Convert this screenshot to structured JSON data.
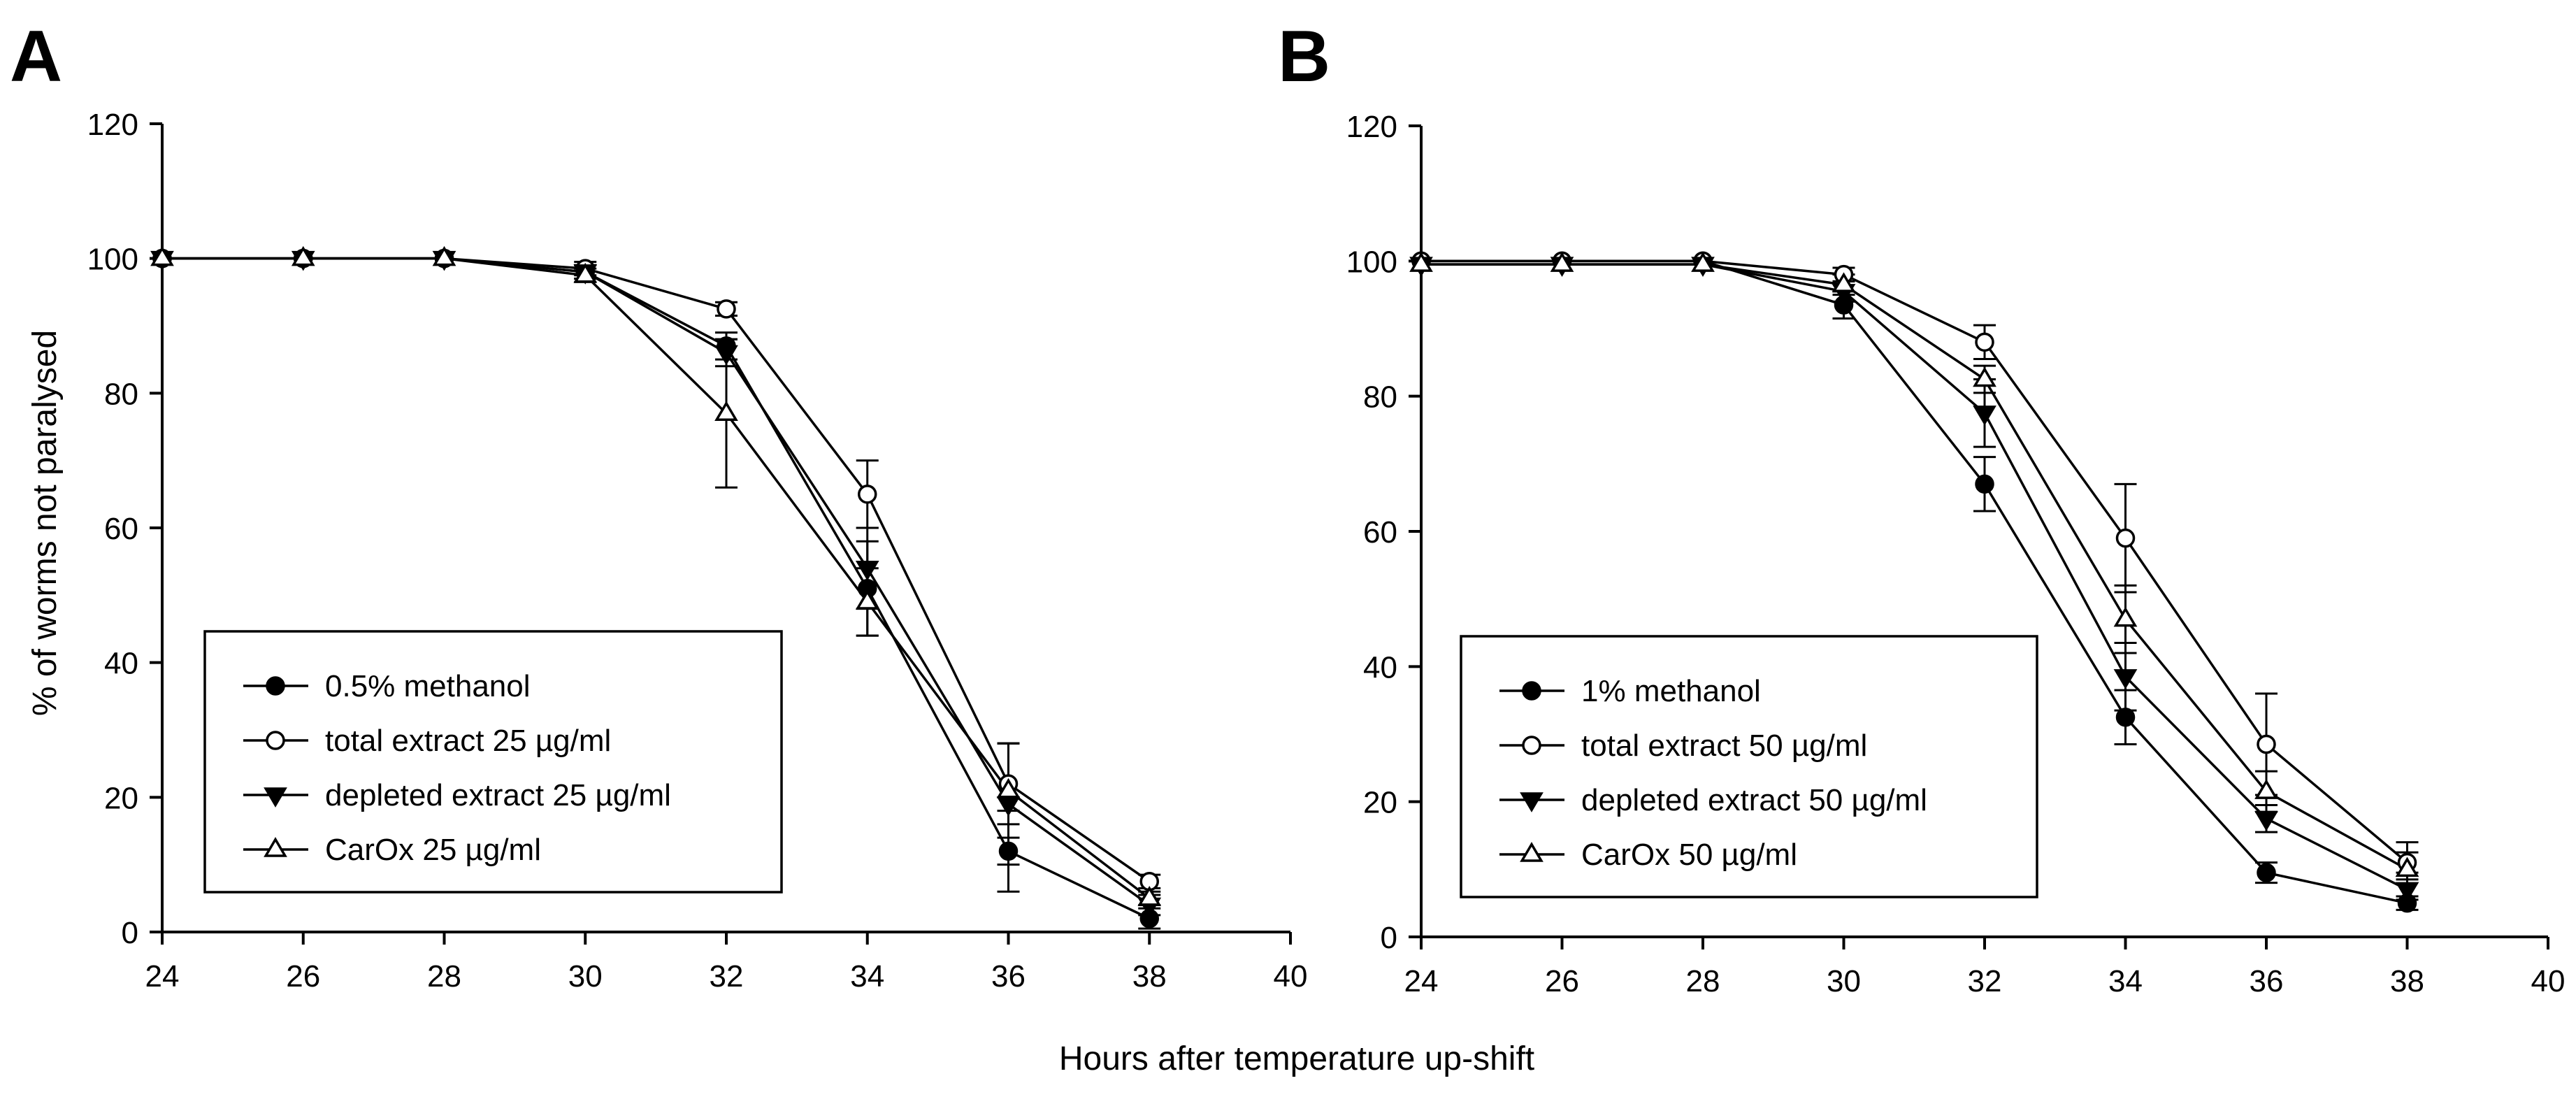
{
  "figure": {
    "xlabel": "Hours after temperature up-shift",
    "ylabel": "% of worms not paralysed"
  },
  "chart_data": [
    {
      "type": "line",
      "panel": "A",
      "xlim": [
        24,
        40
      ],
      "ylim": [
        0,
        120
      ],
      "xticks": [
        "24",
        "26",
        "28",
        "30",
        "32",
        "34",
        "36",
        "38",
        "40"
      ],
      "yticks": [
        "0",
        "20",
        "40",
        "60",
        "80",
        "100",
        "120"
      ],
      "x": [
        24,
        26,
        28,
        30,
        32,
        34,
        36,
        38
      ],
      "legend_position": "lower-left",
      "series": [
        {
          "name": "0.5% methanol",
          "marker": "filled-circle",
          "values": [
            100,
            100,
            100,
            98,
            87,
            51,
            12,
            2
          ],
          "errors": [
            0,
            0,
            0,
            1,
            2,
            7,
            6,
            1.5
          ]
        },
        {
          "name": "total extract 25 µg/ml",
          "marker": "open-circle",
          "values": [
            100,
            100,
            100,
            98.5,
            92.5,
            65,
            22,
            7.5
          ],
          "errors": [
            0,
            0,
            0,
            1,
            1,
            5,
            6,
            1
          ]
        },
        {
          "name": "depleted extract 25 µg/ml",
          "marker": "filled-triangle-down",
          "values": [
            100,
            100,
            100,
            98,
            86,
            54,
            19,
            4
          ],
          "errors": [
            0,
            0,
            0,
            1,
            2,
            6,
            9,
            1.5
          ]
        },
        {
          "name": "CarOx 25 µg/ml",
          "marker": "open-triangle-up",
          "values": [
            100,
            100,
            100,
            97.5,
            77,
            49,
            21,
            5
          ],
          "errors": [
            0,
            0,
            0,
            1,
            11,
            5,
            7,
            1
          ]
        }
      ]
    },
    {
      "type": "line",
      "panel": "B",
      "xlim": [
        24,
        40
      ],
      "ylim": [
        0,
        120
      ],
      "xticks": [
        "24",
        "26",
        "28",
        "30",
        "32",
        "34",
        "36",
        "38",
        "40"
      ],
      "yticks": [
        "0",
        "20",
        "40",
        "60",
        "80",
        "100",
        "120"
      ],
      "x": [
        24,
        26,
        28,
        30,
        32,
        34,
        36,
        38
      ],
      "legend_position": "lower-left",
      "series": [
        {
          "name": "1% methanol",
          "marker": "filled-circle",
          "values": [
            100,
            100,
            100,
            93.5,
            67,
            32.5,
            9.5,
            5
          ],
          "errors": [
            0,
            0,
            0,
            2,
            4,
            4,
            1.5,
            1
          ]
        },
        {
          "name": "total extract 50 µg/ml",
          "marker": "open-circle",
          "values": [
            100,
            100,
            100,
            98,
            88,
            59,
            28.5,
            11
          ],
          "errors": [
            0,
            0,
            0,
            1,
            2.5,
            8,
            7.5,
            1.5
          ]
        },
        {
          "name": "depleted extract 50 µg/ml",
          "marker": "filled-triangle-down",
          "values": [
            99.5,
            99.5,
            99.5,
            95.5,
            77.5,
            38.5,
            17.5,
            7
          ],
          "errors": [
            0,
            0,
            0,
            1.5,
            5,
            5,
            2,
            1.5
          ]
        },
        {
          "name": "CarOx 50 µg/ml",
          "marker": "open-triangle-up",
          "values": [
            99.5,
            99.5,
            99.5,
            96.5,
            82.5,
            47,
            21.5,
            10
          ],
          "errors": [
            0,
            0,
            0,
            1.5,
            2,
            5,
            3,
            4
          ]
        }
      ]
    }
  ]
}
